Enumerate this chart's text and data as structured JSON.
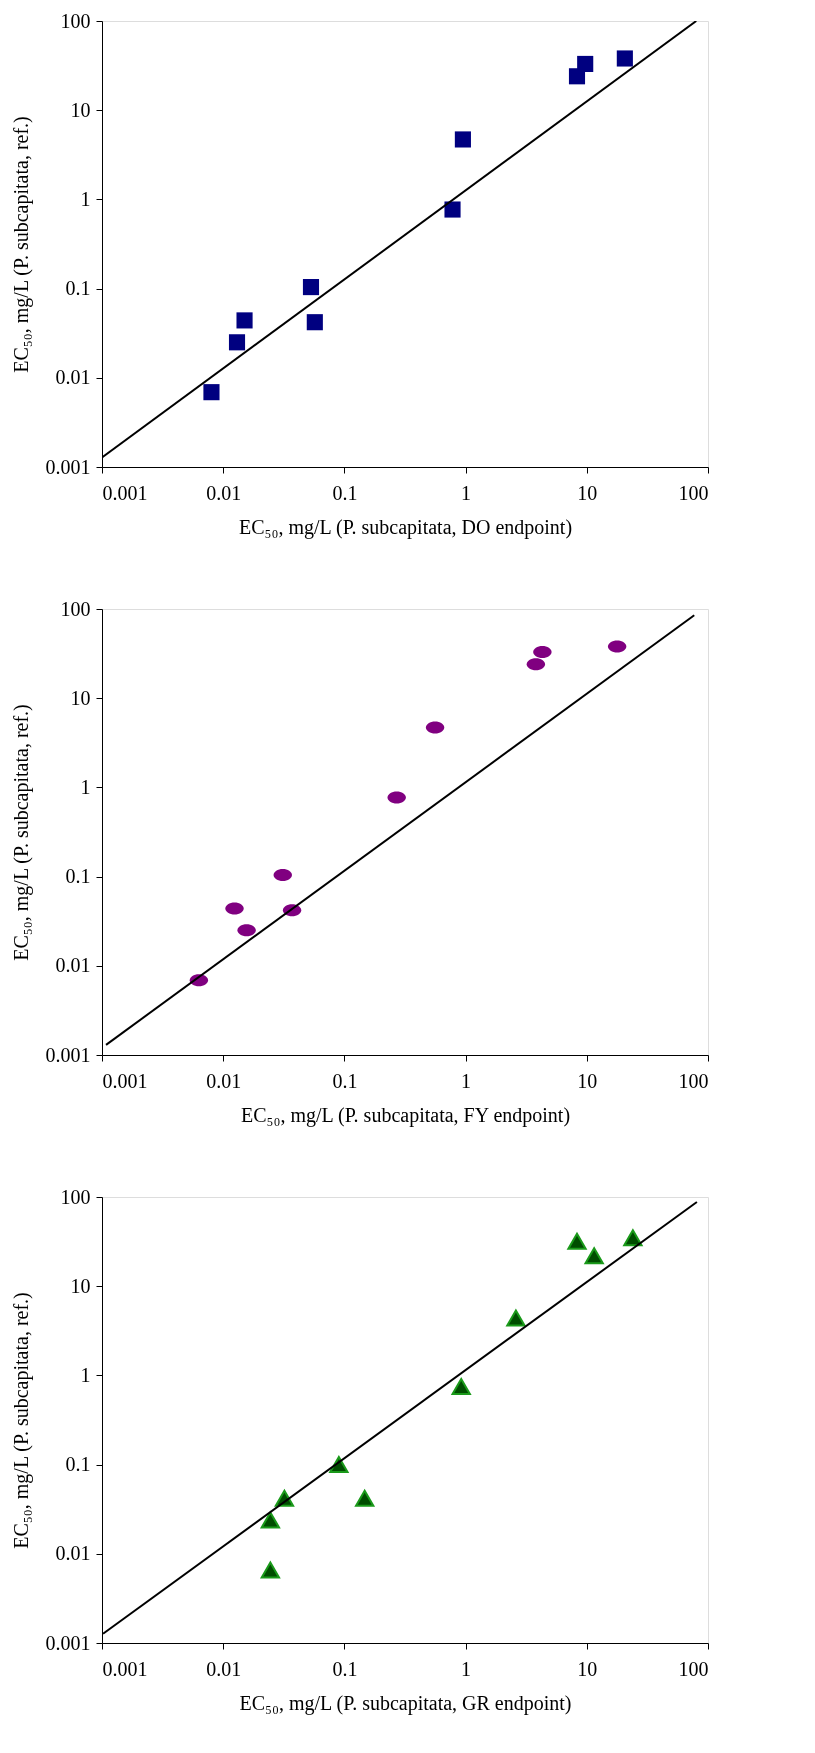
{
  "chart_data": [
    {
      "type": "scatter",
      "xlabel": "EC₅₀, mg/L (P. subcapitata, DO endpoint)",
      "ylabel": "EC₅₀, mg/L (P. subcapitata, ref.)",
      "log": "xy",
      "grid": false,
      "xlim": [
        0.001,
        100
      ],
      "ylim": [
        0.001,
        100
      ],
      "xticks": [
        0.001,
        0.01,
        0.1,
        1,
        10,
        100
      ],
      "yticks": [
        0.001,
        0.01,
        0.1,
        1,
        10,
        100
      ],
      "series": [
        {
          "marker": "square",
          "color": "#000080",
          "x": [
            0.008,
            0.013,
            0.015,
            0.053,
            0.057,
            0.78,
            0.95,
            8.3,
            9.7,
            20.6
          ],
          "values": [
            0.0069,
            0.025,
            0.044,
            0.104,
            0.042,
            0.77,
            4.7,
            24,
            33,
            38
          ]
        },
        {
          "type": "line",
          "marker": "none",
          "color": "#000000",
          "x": [
            0.001,
            80
          ],
          "values": [
            0.00128,
            100
          ]
        }
      ]
    },
    {
      "type": "scatter",
      "xlabel": "EC₅₀, mg/L (P. subcapitata, FY endpoint)",
      "ylabel": "EC₅₀, mg/L (P. subcapitata, ref.)",
      "log": "xy",
      "grid": false,
      "xlim": [
        0.001,
        100
      ],
      "ylim": [
        0.001,
        100
      ],
      "xticks": [
        0.001,
        0.01,
        0.1,
        1,
        10,
        100
      ],
      "yticks": [
        0.001,
        0.01,
        0.1,
        1,
        10,
        100
      ],
      "series": [
        {
          "marker": "circle",
          "color": "#800080",
          "x": [
            0.0063,
            0.0156,
            0.0124,
            0.031,
            0.037,
            0.27,
            0.56,
            3.8,
            4.3,
            17.8
          ],
          "values": [
            0.0069,
            0.025,
            0.044,
            0.104,
            0.042,
            0.77,
            4.7,
            24,
            33,
            38
          ]
        },
        {
          "type": "line",
          "marker": "none",
          "color": "#000000",
          "x": [
            0.00108,
            77
          ],
          "values": [
            0.0013,
            85
          ]
        }
      ]
    },
    {
      "type": "scatter",
      "xlabel": "EC₅₀, mg/L (P. subcapitata, GR endpoint)",
      "ylabel": "EC₅₀, mg/L (P. subcapitata, ref.)",
      "log": "xy",
      "grid": false,
      "xlim": [
        0.001,
        100
      ],
      "ylim": [
        0.001,
        100
      ],
      "xticks": [
        0.001,
        0.01,
        0.1,
        1,
        10,
        100
      ],
      "yticks": [
        0.001,
        0.01,
        0.1,
        1,
        10,
        100
      ],
      "series": [
        {
          "marker": "triangle",
          "color": "#004d00",
          "x": [
            0.0245,
            0.0245,
            0.032,
            0.09,
            0.147,
            0.92,
            2.6,
            8.3,
            11.5,
            24
          ],
          "values": [
            0.0066,
            0.024,
            0.042,
            0.1,
            0.042,
            0.75,
            4.4,
            32,
            22,
            35
          ]
        },
        {
          "type": "line",
          "marker": "none",
          "color": "#000000",
          "x": [
            0.00102,
            81
          ],
          "values": [
            0.00127,
            88
          ]
        }
      ]
    }
  ]
}
